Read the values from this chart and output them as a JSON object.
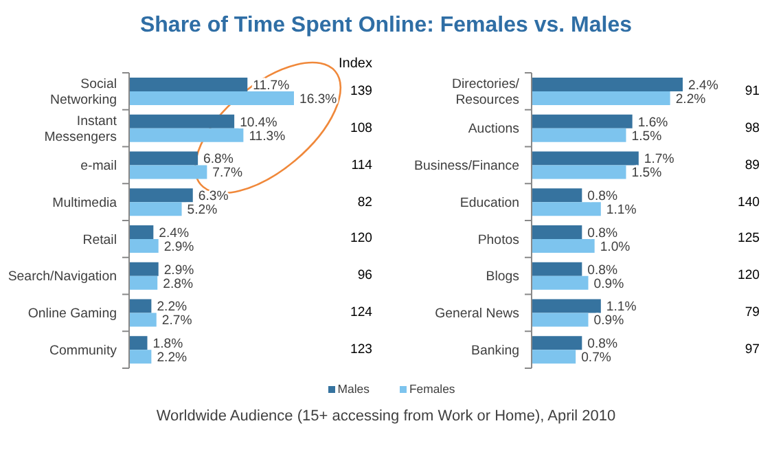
{
  "chart_data": [
    {
      "type": "bar",
      "orientation": "horizontal",
      "title": "Share of Time Spent Online: Females vs. Males",
      "categories": [
        "Social Networking",
        "Instant Messengers",
        "e-mail",
        "Multimedia",
        "Retail",
        "Search/Navigation",
        "Online Gaming",
        "Community"
      ],
      "series": [
        {
          "name": "Males",
          "color": "#36739f",
          "values": [
            11.7,
            10.4,
            6.8,
            6.3,
            2.4,
            2.9,
            2.2,
            1.8
          ],
          "value_labels": [
            "11.7%",
            "10.4%",
            "6.8%",
            "6.3%",
            "2.4%",
            "2.9%",
            "2.2%",
            "1.8%"
          ]
        },
        {
          "name": "Females",
          "color": "#7dc4ee",
          "values": [
            16.3,
            11.3,
            7.7,
            5.2,
            2.9,
            2.8,
            2.7,
            2.2
          ],
          "value_labels": [
            "16.3%",
            "11.3%",
            "7.7%",
            "5.2%",
            "2.9%",
            "2.8%",
            "2.7%",
            "2.2%"
          ]
        }
      ],
      "legend": "bottom",
      "tick_labels": "y",
      "annotations": [
        "Index",
        "139",
        "108",
        "114",
        "82",
        "120",
        "96",
        "124",
        "123",
        "Worldwide Audience (15+ accessing from Work or Home), April 2010"
      ]
    },
    {
      "type": "bar",
      "orientation": "horizontal",
      "categories": [
        "Directories/ Resources",
        "Auctions",
        "Business/Finance",
        "Education",
        "Photos",
        "Blogs",
        "General News",
        "Banking"
      ],
      "series": [
        {
          "color": "#36739f",
          "values": [
            2.4,
            1.6,
            1.7,
            0.8,
            0.8,
            0.8,
            1.1,
            0.8
          ],
          "value_labels": [
            "2.4%",
            "1.6%",
            "1.7%",
            "0.8%",
            "0.8%",
            "0.8%",
            "1.1%",
            "0.8%"
          ]
        },
        {
          "color": "#7dc4ee",
          "values": [
            2.2,
            1.5,
            1.5,
            1.1,
            1,
            0.9,
            0.9,
            0.7
          ],
          "value_labels": [
            "2.2%",
            "1.5%",
            "1.5%",
            "1.1%",
            "1.0%",
            "0.9%",
            "0.9%",
            "0.7%"
          ]
        }
      ],
      "tick_labels": "y",
      "annotations": [
        "91",
        "98",
        "89",
        "140",
        "125",
        "120",
        "79",
        "97"
      ]
    }
  ]
}
